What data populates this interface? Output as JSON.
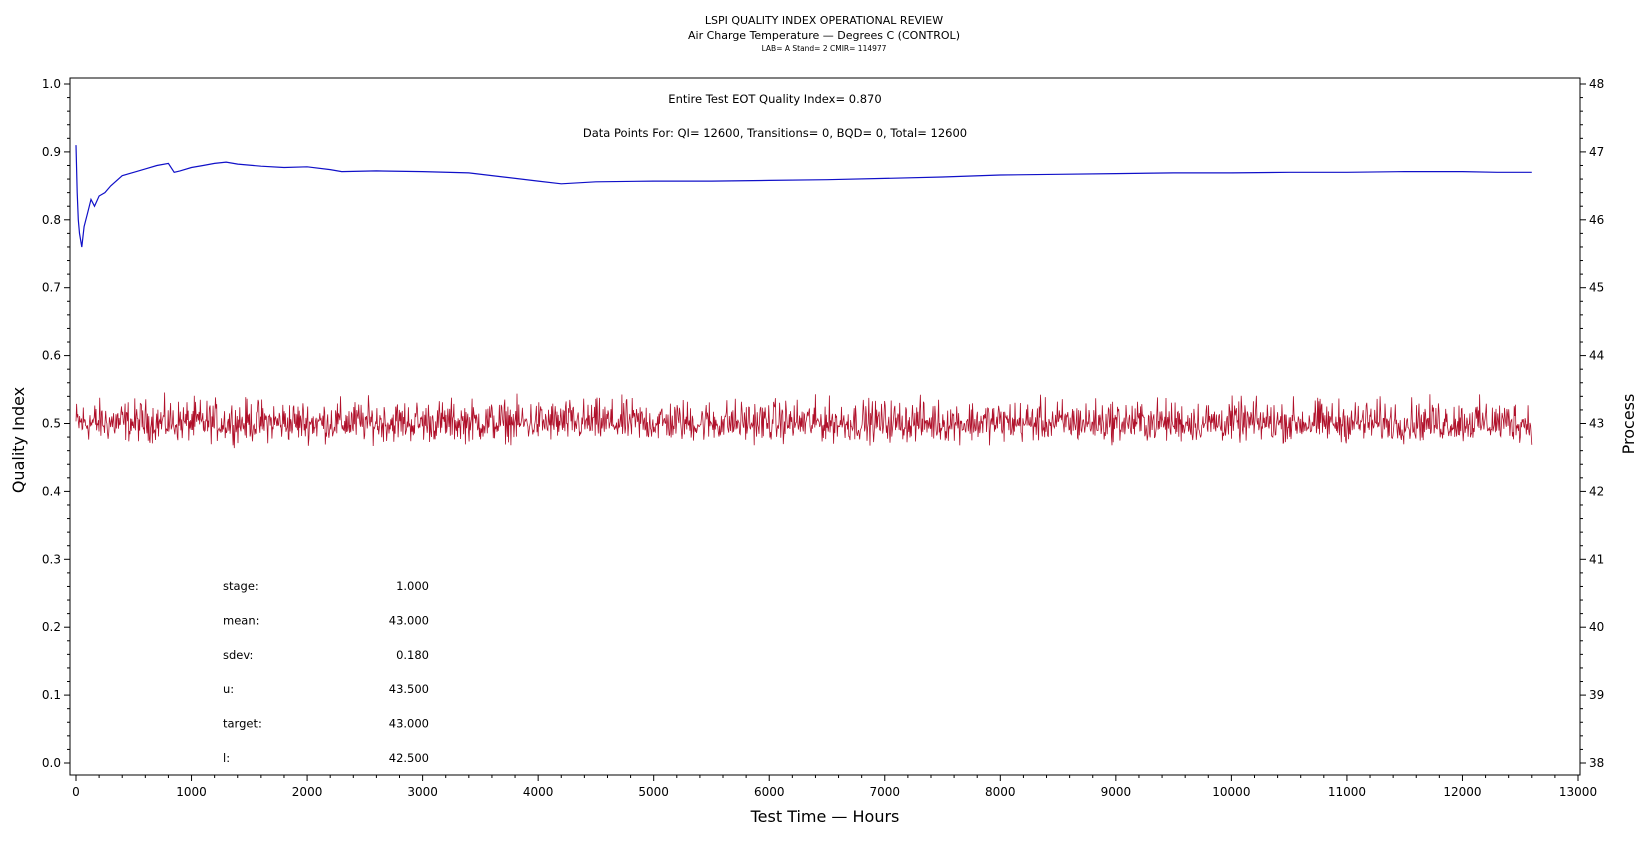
{
  "header": {
    "title": "LSPI QUALITY INDEX OPERATIONAL REVIEW",
    "subtitle": "Air Charge Temperature — Degrees C (CONTROL)",
    "info": "LAB= A Stand= 2 CMIR= 114977"
  },
  "annotations": {
    "eot_quality": "Entire Test EOT Quality Index=   0.870",
    "data_points": "Data Points For: QI= 12600, Transitions=      0, BQD=      0, Total= 12600"
  },
  "stats": [
    {
      "label": "stage:",
      "value": "1.000"
    },
    {
      "label": "mean:",
      "value": "43.000"
    },
    {
      "label": "sdev:",
      "value": "0.180"
    },
    {
      "label": "u:",
      "value": "43.500"
    },
    {
      "label": "target:",
      "value": "43.000"
    },
    {
      "label": "l:",
      "value": "42.500"
    }
  ],
  "chart_data": {
    "type": "line",
    "title": "LSPI QUALITY INDEX OPERATIONAL REVIEW",
    "xlabel": "Test Time — Hours",
    "ylabel": "Quality Index",
    "y2label": "Process",
    "xlim": [
      0,
      13000
    ],
    "ylim": [
      0.0,
      1.0
    ],
    "y2lim": [
      38,
      48
    ],
    "x_ticks": [
      0,
      1000,
      2000,
      3000,
      4000,
      5000,
      6000,
      7000,
      8000,
      9000,
      10000,
      11000,
      12000,
      13000
    ],
    "y_ticks": [
      0.0,
      0.1,
      0.2,
      0.3,
      0.4,
      0.5,
      0.6,
      0.7,
      0.8,
      0.9,
      1.0
    ],
    "y2_ticks": [
      38,
      39,
      40,
      41,
      42,
      43,
      44,
      45,
      46,
      47,
      48
    ],
    "y_tick_labels": [
      "0.0",
      "0.1",
      "0.2",
      "0.3",
      "0.4",
      "0.5",
      "0.6",
      "0.7",
      "0.8",
      "0.9",
      "1.0"
    ],
    "series": [
      {
        "axis": "left",
        "color": "#1010c8",
        "x": [
          0,
          10,
          20,
          30,
          50,
          70,
          100,
          130,
          160,
          200,
          250,
          300,
          400,
          500,
          600,
          700,
          800,
          850,
          900,
          1000,
          1100,
          1200,
          1300,
          1400,
          1600,
          1800,
          2000,
          2200,
          2300,
          2600,
          3000,
          3400,
          3700,
          4000,
          4200,
          4500,
          5000,
          5500,
          6000,
          6500,
          7000,
          7500,
          8000,
          8500,
          9000,
          9500,
          10000,
          10500,
          11000,
          11500,
          12000,
          12300,
          12600
        ],
        "y": [
          0.91,
          0.84,
          0.8,
          0.78,
          0.76,
          0.79,
          0.81,
          0.83,
          0.82,
          0.835,
          0.84,
          0.85,
          0.865,
          0.87,
          0.875,
          0.88,
          0.883,
          0.87,
          0.872,
          0.877,
          0.88,
          0.883,
          0.885,
          0.882,
          0.879,
          0.877,
          0.878,
          0.874,
          0.871,
          0.872,
          0.871,
          0.869,
          0.863,
          0.857,
          0.853,
          0.856,
          0.857,
          0.857,
          0.858,
          0.859,
          0.861,
          0.863,
          0.866,
          0.867,
          0.868,
          0.869,
          0.869,
          0.87,
          0.87,
          0.871,
          0.871,
          0.87,
          0.87
        ]
      },
      {
        "axis": "right",
        "color": "#b0102a",
        "description_values": {
          "center": 43.0,
          "min": 42.55,
          "max": 43.6
        },
        "x_range": [
          0,
          12600
        ]
      }
    ]
  }
}
